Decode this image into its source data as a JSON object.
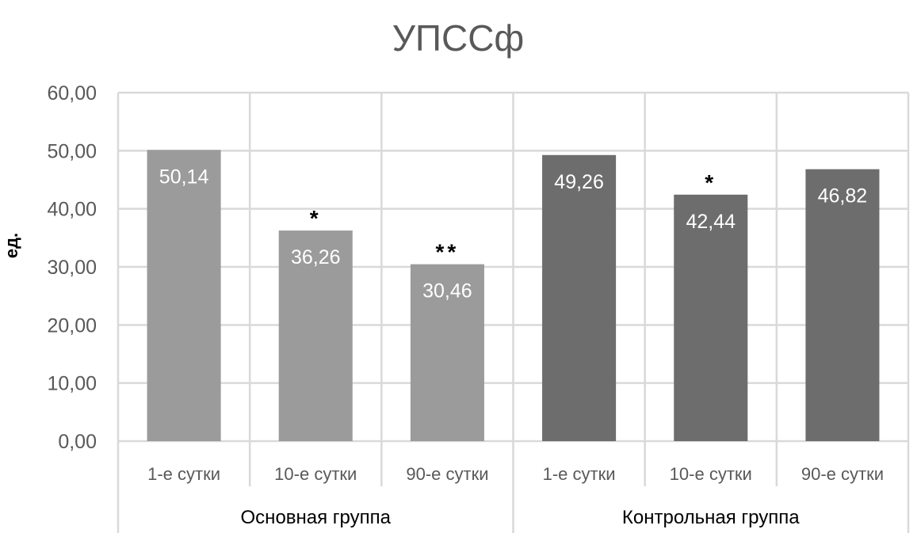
{
  "chart_data": {
    "type": "bar",
    "title": "УПССф",
    "ylabel": "ед.",
    "xlabel": "",
    "ylim": [
      0,
      60
    ],
    "yticks": [
      "0,00",
      "10,00",
      "20,00",
      "30,00",
      "40,00",
      "50,00",
      "60,00"
    ],
    "ytick_values": [
      0,
      10,
      20,
      30,
      40,
      50,
      60
    ],
    "grid": true,
    "legend": "none",
    "groups": [
      {
        "name": "Основная группа",
        "color": "#9b9b9b",
        "categories": [
          "1-е сутки",
          "10-е сутки",
          "90-е сутки"
        ],
        "values": [
          50.14,
          36.26,
          30.46
        ],
        "labels": [
          "50,14",
          "36,26",
          "30,46"
        ],
        "markers": [
          "",
          "*",
          "**"
        ]
      },
      {
        "name": "Контрольная группа",
        "color": "#6e6d6d",
        "categories": [
          "1-е сутки",
          "10-е сутки",
          "90-е сутки"
        ],
        "values": [
          49.26,
          42.44,
          46.82
        ],
        "labels": [
          "49,26",
          "42,44",
          "46,82"
        ],
        "markers": [
          "",
          "*",
          ""
        ]
      }
    ]
  }
}
